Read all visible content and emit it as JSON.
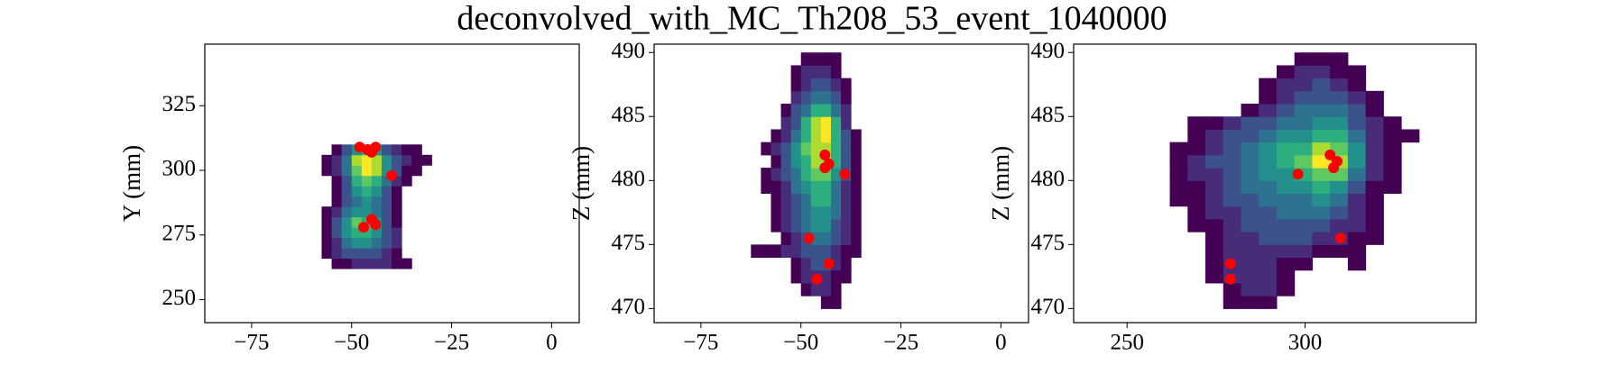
{
  "title": "deconvolved_with_MC_Th208_53_event_1040000",
  "chart_data": [
    {
      "type": "heatmap",
      "ylabel": "Y (mm)",
      "cmap": "viridis",
      "xlim": [
        -86.7,
        6.9
      ],
      "ylim": [
        241.1,
        348.8
      ],
      "xticks": [
        {
          "value": -75,
          "label": "−75"
        },
        {
          "value": -50,
          "label": "−50"
        },
        {
          "value": -25,
          "label": "−25"
        },
        0
      ],
      "yticks": [
        250,
        275,
        300,
        325
      ],
      "heatmap": {
        "xedges": [
          -60,
          -57.5,
          -55,
          -52.5,
          -50,
          -47.5,
          -45,
          -42.5,
          -40,
          -37.5,
          -35,
          -32.5,
          -30
        ],
        "yedges": [
          262,
          266,
          270,
          274,
          278,
          282,
          286,
          290,
          294,
          298,
          302,
          306,
          310
        ],
        "z": [
          [
            null,
            null,
            1,
            1,
            2,
            2,
            2,
            2,
            1,
            1,
            null,
            null
          ],
          [
            null,
            1,
            2,
            3,
            3,
            3,
            3,
            2,
            1,
            null,
            null,
            null
          ],
          [
            null,
            1,
            2,
            4,
            5,
            5,
            4,
            3,
            2,
            null,
            null,
            null
          ],
          [
            null,
            1,
            3,
            5,
            6,
            6,
            5,
            3,
            2,
            null,
            null,
            null
          ],
          [
            null,
            1,
            3,
            5,
            7,
            6,
            5,
            3,
            1,
            null,
            null,
            null
          ],
          [
            null,
            1,
            2,
            4,
            5,
            5,
            4,
            3,
            1,
            null,
            null,
            null
          ],
          [
            null,
            null,
            1,
            3,
            4,
            5,
            4,
            3,
            1,
            null,
            null,
            null
          ],
          [
            null,
            null,
            1,
            3,
            5,
            6,
            5,
            3,
            1,
            null,
            null,
            null
          ],
          [
            null,
            null,
            1,
            3,
            6,
            7,
            6,
            4,
            2,
            1,
            null,
            null
          ],
          [
            null,
            1,
            2,
            4,
            7,
            9,
            8,
            5,
            3,
            1,
            1,
            null
          ],
          [
            null,
            1,
            2,
            4,
            8,
            9,
            8,
            5,
            3,
            2,
            1,
            1
          ],
          [
            null,
            null,
            1,
            3,
            5,
            6,
            5,
            3,
            2,
            1,
            1,
            null
          ]
        ]
      },
      "points": {
        "color": "#ff0000",
        "x": [
          -48,
          -46,
          -44,
          -45,
          -40,
          -47,
          -44,
          -45
        ],
        "y": [
          309,
          308,
          309,
          307,
          298,
          278,
          279,
          281
        ]
      }
    },
    {
      "type": "heatmap",
      "ylabel": "Z (mm)",
      "cmap": "viridis",
      "xlim": [
        -86.7,
        6.9
      ],
      "ylim": [
        468.9,
        490.65
      ],
      "xticks": [
        {
          "value": -75,
          "label": "−75"
        },
        {
          "value": -50,
          "label": "−50"
        },
        {
          "value": -25,
          "label": "−25"
        },
        0
      ],
      "yticks": [
        470,
        475,
        480,
        485,
        490
      ],
      "heatmap": {
        "xedges": [
          -62.5,
          -60,
          -57.5,
          -55,
          -52.5,
          -50,
          -47.5,
          -45,
          -42.5,
          -40,
          -37.5,
          -35
        ],
        "yedges": [
          470,
          471,
          472,
          473,
          474,
          475,
          476,
          477,
          478,
          479,
          480,
          481,
          482,
          483,
          484,
          485,
          486,
          487,
          488,
          489,
          490
        ],
        "z": [
          [
            null,
            null,
            null,
            null,
            null,
            null,
            null,
            1,
            1,
            null,
            null
          ],
          [
            null,
            null,
            null,
            null,
            null,
            1,
            2,
            2,
            1,
            null,
            null
          ],
          [
            null,
            null,
            null,
            null,
            1,
            2,
            2,
            2,
            1,
            1,
            null
          ],
          [
            null,
            null,
            null,
            null,
            1,
            2,
            3,
            3,
            2,
            1,
            null
          ],
          [
            1,
            1,
            1,
            2,
            2,
            3,
            3,
            3,
            2,
            1,
            1
          ],
          [
            null,
            null,
            null,
            1,
            2,
            3,
            4,
            4,
            3,
            2,
            1
          ],
          [
            null,
            null,
            1,
            2,
            3,
            4,
            5,
            5,
            3,
            2,
            1
          ],
          [
            null,
            null,
            1,
            2,
            3,
            4,
            5,
            5,
            4,
            2,
            1
          ],
          [
            null,
            null,
            1,
            2,
            3,
            4,
            6,
            6,
            4,
            2,
            1
          ],
          [
            null,
            1,
            1,
            2,
            4,
            5,
            6,
            6,
            4,
            2,
            1
          ],
          [
            null,
            1,
            2,
            3,
            4,
            6,
            7,
            7,
            5,
            3,
            1
          ],
          [
            null,
            null,
            1,
            3,
            5,
            6,
            8,
            8,
            6,
            3,
            1
          ],
          [
            null,
            1,
            2,
            3,
            5,
            7,
            8,
            8,
            6,
            3,
            1
          ],
          [
            null,
            null,
            1,
            2,
            4,
            6,
            8,
            9,
            6,
            3,
            1
          ],
          [
            null,
            null,
            null,
            2,
            3,
            6,
            8,
            9,
            6,
            2,
            null
          ],
          [
            null,
            null,
            null,
            1,
            3,
            4,
            6,
            6,
            4,
            2,
            null
          ],
          [
            null,
            null,
            null,
            null,
            2,
            3,
            4,
            4,
            3,
            1,
            null
          ],
          [
            null,
            null,
            null,
            null,
            1,
            2,
            3,
            3,
            2,
            1,
            null
          ],
          [
            null,
            null,
            null,
            null,
            1,
            2,
            2,
            2,
            1,
            null,
            null
          ],
          [
            null,
            null,
            null,
            null,
            null,
            1,
            1,
            1,
            1,
            null,
            null
          ]
        ]
      },
      "points": {
        "color": "#ff0000",
        "x": [
          -44,
          -44,
          -43,
          -39,
          -48,
          -43,
          -46
        ],
        "y": [
          482,
          481,
          481.3,
          480.5,
          475.5,
          473.5,
          472.3
        ]
      }
    },
    {
      "type": "heatmap",
      "ylabel": "Z (mm)",
      "cmap": "viridis",
      "xlim": [
        235,
        348
      ],
      "ylim": [
        468.9,
        490.65
      ],
      "xticks": [
        250,
        300
      ],
      "yticks": [
        470,
        475,
        480,
        485,
        490
      ],
      "heatmap": {
        "xedges": [
          262,
          267,
          272,
          277,
          282,
          287,
          292,
          297,
          302,
          307,
          312,
          317,
          322,
          327,
          332
        ],
        "yedges": [
          470,
          471,
          472,
          473,
          474,
          475,
          476,
          477,
          478,
          479,
          480,
          481,
          482,
          483,
          484,
          485,
          486,
          487,
          488,
          489,
          490
        ],
        "z": [
          [
            null,
            null,
            null,
            1,
            1,
            1,
            null,
            null,
            null,
            null,
            null,
            null,
            null,
            null
          ],
          [
            null,
            null,
            null,
            1,
            2,
            2,
            1,
            null,
            null,
            null,
            null,
            null,
            null,
            null
          ],
          [
            null,
            null,
            1,
            2,
            2,
            2,
            1,
            null,
            null,
            null,
            null,
            null,
            null,
            null
          ],
          [
            null,
            null,
            1,
            2,
            2,
            2,
            1,
            1,
            null,
            null,
            1,
            null,
            null,
            null
          ],
          [
            null,
            null,
            1,
            2,
            2,
            2,
            2,
            2,
            1,
            1,
            1,
            null,
            null,
            null
          ],
          [
            null,
            null,
            1,
            2,
            2,
            3,
            3,
            3,
            2,
            2,
            1,
            1,
            null,
            null
          ],
          [
            null,
            1,
            1,
            2,
            3,
            3,
            3,
            3,
            3,
            2,
            2,
            1,
            null,
            null
          ],
          [
            null,
            1,
            2,
            2,
            3,
            3,
            4,
            4,
            4,
            3,
            2,
            1,
            null,
            null
          ],
          [
            1,
            1,
            2,
            3,
            3,
            4,
            4,
            4,
            5,
            4,
            2,
            1,
            null,
            null
          ],
          [
            1,
            1,
            2,
            3,
            4,
            4,
            5,
            5,
            6,
            5,
            3,
            1,
            1,
            null
          ],
          [
            1,
            2,
            2,
            3,
            4,
            5,
            5,
            6,
            7,
            7,
            4,
            2,
            1,
            null
          ],
          [
            1,
            2,
            3,
            3,
            4,
            5,
            6,
            7,
            9,
            8,
            5,
            2,
            1,
            null
          ],
          [
            1,
            1,
            2,
            3,
            4,
            5,
            6,
            6,
            8,
            7,
            5,
            2,
            1,
            null
          ],
          [
            null,
            1,
            2,
            3,
            3,
            4,
            5,
            5,
            6,
            6,
            4,
            2,
            1,
            1
          ],
          [
            null,
            1,
            1,
            2,
            3,
            3,
            4,
            4,
            5,
            5,
            3,
            2,
            1,
            null
          ],
          [
            null,
            null,
            null,
            null,
            1,
            2,
            3,
            4,
            4,
            4,
            3,
            1,
            null,
            null
          ],
          [
            null,
            null,
            null,
            null,
            null,
            1,
            2,
            3,
            3,
            3,
            2,
            1,
            null,
            null
          ],
          [
            null,
            null,
            null,
            null,
            null,
            1,
            2,
            2,
            3,
            2,
            1,
            null,
            null,
            null
          ],
          [
            null,
            null,
            null,
            null,
            null,
            null,
            1,
            2,
            2,
            1,
            1,
            null,
            null,
            null
          ],
          [
            null,
            null,
            null,
            null,
            null,
            null,
            null,
            1,
            1,
            1,
            null,
            null,
            null,
            null
          ]
        ]
      },
      "points": {
        "color": "#ff0000",
        "x": [
          307,
          309,
          308,
          298,
          310,
          279,
          279
        ],
        "y": [
          482,
          481.5,
          481,
          480.5,
          475.5,
          473.5,
          472.3
        ]
      }
    }
  ]
}
